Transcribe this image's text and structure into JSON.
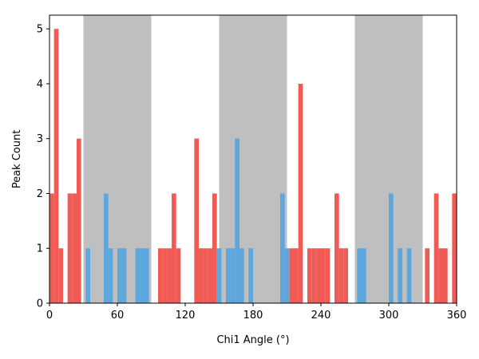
{
  "chart_data": {
    "type": "bar",
    "title": "",
    "xlabel": "Chi1 Angle (°)",
    "ylabel": "Peak Count",
    "xlim": [
      0,
      360
    ],
    "ylim": [
      0,
      5.25
    ],
    "xticks": [
      0,
      60,
      120,
      180,
      240,
      300,
      360
    ],
    "yticks": [
      0,
      1,
      2,
      3,
      4,
      5
    ],
    "bin_width": 4,
    "grid": false,
    "shaded_regions": [
      [
        30,
        90
      ],
      [
        150,
        210
      ],
      [
        270,
        330
      ]
    ],
    "colors": {
      "red": "#f05b55",
      "blue": "#5da7dd",
      "shade": "#bfbfbf"
    },
    "series": [
      {
        "color": "red",
        "bins": [
          {
            "x": 0,
            "value": 2
          },
          {
            "x": 4,
            "value": 5
          },
          {
            "x": 8,
            "value": 1
          },
          {
            "x": 16,
            "value": 2
          },
          {
            "x": 20,
            "value": 2
          },
          {
            "x": 24,
            "value": 3
          },
          {
            "x": 96,
            "value": 1
          },
          {
            "x": 100,
            "value": 1
          },
          {
            "x": 104,
            "value": 1
          },
          {
            "x": 108,
            "value": 2
          },
          {
            "x": 112,
            "value": 1
          },
          {
            "x": 128,
            "value": 3
          },
          {
            "x": 132,
            "value": 1
          },
          {
            "x": 136,
            "value": 1
          },
          {
            "x": 140,
            "value": 1
          },
          {
            "x": 144,
            "value": 2
          },
          {
            "x": 212,
            "value": 1
          },
          {
            "x": 216,
            "value": 1
          },
          {
            "x": 220,
            "value": 4
          },
          {
            "x": 228,
            "value": 1
          },
          {
            "x": 232,
            "value": 1
          },
          {
            "x": 236,
            "value": 1
          },
          {
            "x": 240,
            "value": 1
          },
          {
            "x": 244,
            "value": 1
          },
          {
            "x": 252,
            "value": 2
          },
          {
            "x": 256,
            "value": 1
          },
          {
            "x": 260,
            "value": 1
          },
          {
            "x": 332,
            "value": 1
          },
          {
            "x": 340,
            "value": 2
          },
          {
            "x": 344,
            "value": 1
          },
          {
            "x": 348,
            "value": 1
          },
          {
            "x": 356,
            "value": 2
          }
        ]
      },
      {
        "color": "blue",
        "bins": [
          {
            "x": 32,
            "value": 1
          },
          {
            "x": 48,
            "value": 2
          },
          {
            "x": 52,
            "value": 1
          },
          {
            "x": 60,
            "value": 1
          },
          {
            "x": 64,
            "value": 1
          },
          {
            "x": 76,
            "value": 1
          },
          {
            "x": 80,
            "value": 1
          },
          {
            "x": 84,
            "value": 1
          },
          {
            "x": 148,
            "value": 1
          },
          {
            "x": 156,
            "value": 1
          },
          {
            "x": 160,
            "value": 1
          },
          {
            "x": 164,
            "value": 3
          },
          {
            "x": 168,
            "value": 1
          },
          {
            "x": 176,
            "value": 1
          },
          {
            "x": 204,
            "value": 2
          },
          {
            "x": 208,
            "value": 1
          },
          {
            "x": 272,
            "value": 1
          },
          {
            "x": 276,
            "value": 1
          },
          {
            "x": 300,
            "value": 2
          },
          {
            "x": 308,
            "value": 1
          },
          {
            "x": 316,
            "value": 1
          }
        ]
      }
    ]
  }
}
